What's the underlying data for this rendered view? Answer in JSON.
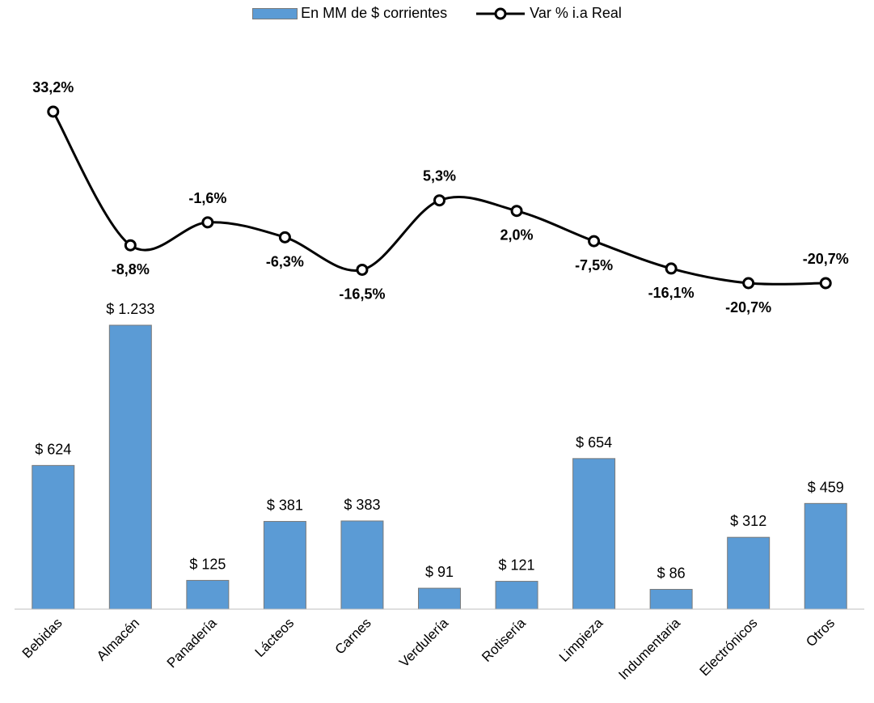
{
  "legend": {
    "bar_label": "En MM de $ corrientes",
    "line_label": "Var % i.a Real"
  },
  "colors": {
    "bar": "#5b9bd5",
    "bar_border": "#7a7a7a",
    "line": "#000000",
    "marker_fill": "#ffffff"
  },
  "chart_data": {
    "type": "bar+line",
    "categories": [
      "Bebidas",
      "Almacén",
      "Panadería",
      "Lácteos",
      "Carnes",
      "Verdulería",
      "Rotisería",
      "Limpieza",
      "Indumentaria",
      "Electrónicos",
      "Otros"
    ],
    "series": [
      {
        "name": "En MM de $ corrientes",
        "type": "bar",
        "values": [
          624,
          1233,
          125,
          381,
          383,
          91,
          121,
          654,
          86,
          312,
          459
        ],
        "labels": [
          "$ 624",
          "$ 1.233",
          "$ 125",
          "$ 381",
          "$ 383",
          "$ 91",
          "$ 121",
          "$ 654",
          "$ 86",
          "$ 312",
          "$ 459"
        ]
      },
      {
        "name": "Var % i.a Real",
        "type": "line",
        "smooth": true,
        "values": [
          33.2,
          -8.8,
          -1.6,
          -6.3,
          -16.5,
          5.3,
          2.0,
          -7.5,
          -16.1,
          -20.7,
          -20.7
        ],
        "labels": [
          "33,2%",
          "-8,8%",
          "-1,6%",
          "-6,3%",
          "-16,5%",
          "5,3%",
          "2,0%",
          "-7,5%",
          "-16,1%",
          "-20,7%",
          "-20,7%"
        ]
      }
    ],
    "legend_position": "top-center",
    "grid": false
  }
}
